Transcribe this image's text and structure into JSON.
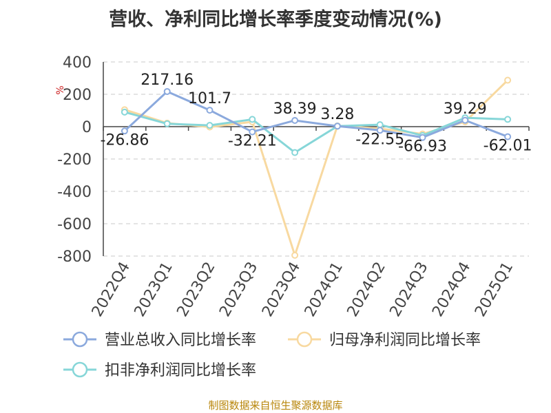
{
  "chart_data": {
    "type": "line",
    "title": "营收、净利同比增长率季度变动情况(%)",
    "ylabel": "%",
    "xlabel": "",
    "categories": [
      "2022Q4",
      "2023Q1",
      "2023Q2",
      "2023Q3",
      "2023Q4",
      "2024Q1",
      "2024Q2",
      "2024Q3",
      "2024Q4",
      "2025Q1"
    ],
    "y_ticks": [
      400,
      200,
      0,
      -200,
      -400,
      -600,
      -800
    ],
    "y_tick_labels": [
      "400",
      "200",
      "0",
      "-200",
      "-400",
      "-600",
      "-800"
    ],
    "ylim": [
      -800,
      400
    ],
    "grid": true,
    "legend_position": "bottom",
    "series": [
      {
        "name": "营业总收入同比增长率",
        "color": "#8ba9dd",
        "values": [
          -26.86,
          217.16,
          101.7,
          -32.21,
          38.39,
          3.28,
          -22.55,
          -66.93,
          39.29,
          -62.01
        ],
        "labels": [
          "-26.86",
          "217.16",
          "101.7",
          "-32.21",
          "38.39",
          "3.28",
          "-22.55",
          "-66.93",
          "39.29",
          "-62.01"
        ]
      },
      {
        "name": "归母净利润同比增长率",
        "color": "#f8d9a0",
        "values": [
          105,
          22,
          -2,
          30,
          -795,
          5,
          -12,
          -45,
          30,
          287
        ],
        "labels": []
      },
      {
        "name": "扣非净利润同比增长率",
        "color": "#86d6d8",
        "values": [
          90,
          18,
          8,
          45,
          -160,
          3,
          12,
          -55,
          55,
          45
        ],
        "labels": []
      }
    ]
  },
  "footer": {
    "source": "制图数据来自恒生聚源数据库"
  }
}
